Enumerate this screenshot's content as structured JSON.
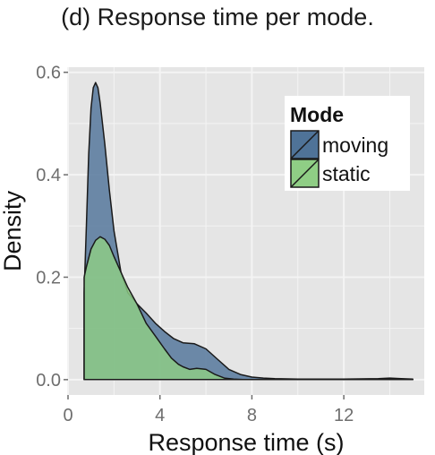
{
  "caption": "(d) Response time per mode.",
  "chart_data": {
    "type": "area",
    "subtype": "density",
    "xlabel": "Response time (s)",
    "ylabel": "Density",
    "xlim": [
      0,
      15.5
    ],
    "ylim": [
      -0.03,
      0.61
    ],
    "x_ticks": [
      0,
      4,
      8,
      12
    ],
    "y_ticks": [
      0.0,
      0.2,
      0.4,
      0.6
    ],
    "x_tick_labels": [
      "0",
      "4",
      "8",
      "12"
    ],
    "y_tick_labels": [
      "0.0",
      "0.2",
      "0.4",
      "0.6"
    ],
    "grid": true,
    "legend": {
      "title": "Mode",
      "position": "top-right"
    },
    "series": [
      {
        "name": "moving",
        "color": "#4f7398",
        "x": [
          0.7,
          0.8,
          0.9,
          1.0,
          1.1,
          1.2,
          1.3,
          1.4,
          1.6,
          1.8,
          2.0,
          2.3,
          2.6,
          3.0,
          3.4,
          3.8,
          4.2,
          4.6,
          5.0,
          5.5,
          6.0,
          6.5,
          7.0,
          7.5,
          8.0,
          8.5,
          9.0,
          10.0,
          12.0,
          13.5,
          14.0,
          14.5,
          15.0
        ],
        "y": [
          0.17,
          0.3,
          0.44,
          0.53,
          0.57,
          0.58,
          0.57,
          0.54,
          0.46,
          0.37,
          0.29,
          0.21,
          0.17,
          0.148,
          0.13,
          0.11,
          0.094,
          0.08,
          0.072,
          0.07,
          0.06,
          0.04,
          0.02,
          0.01,
          0.005,
          0.003,
          0.002,
          0.001,
          0.001,
          0.002,
          0.003,
          0.002,
          0.001
        ]
      },
      {
        "name": "static",
        "color": "#8fce85",
        "x": [
          0.7,
          0.8,
          1.0,
          1.2,
          1.4,
          1.6,
          1.8,
          2.0,
          2.3,
          2.6,
          3.0,
          3.4,
          3.8,
          4.2,
          4.5,
          4.8,
          5.0,
          5.3,
          5.6,
          6.0,
          6.4,
          6.8,
          7.2,
          7.6,
          8.0,
          8.5,
          9.0,
          10.0,
          12.0,
          15.0
        ],
        "y": [
          0.2,
          0.22,
          0.255,
          0.272,
          0.279,
          0.274,
          0.262,
          0.24,
          0.21,
          0.18,
          0.148,
          0.11,
          0.085,
          0.06,
          0.042,
          0.03,
          0.025,
          0.02,
          0.022,
          0.02,
          0.01,
          0.003,
          0.001,
          0.0,
          0.0,
          0.0,
          0.0,
          0.0,
          0.0,
          0.0
        ]
      }
    ]
  }
}
